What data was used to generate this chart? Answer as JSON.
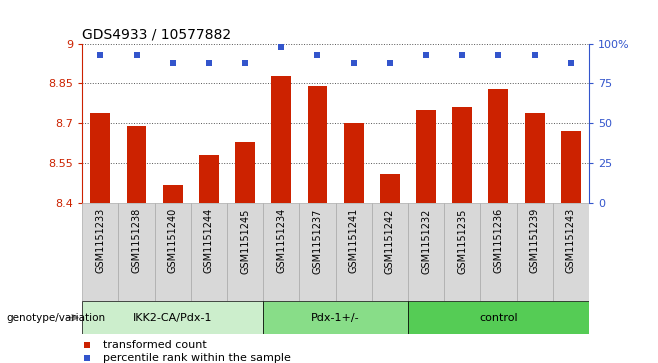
{
  "title": "GDS4933 / 10577882",
  "samples": [
    "GSM1151233",
    "GSM1151238",
    "GSM1151240",
    "GSM1151244",
    "GSM1151245",
    "GSM1151234",
    "GSM1151237",
    "GSM1151241",
    "GSM1151242",
    "GSM1151232",
    "GSM1151235",
    "GSM1151236",
    "GSM1151239",
    "GSM1151243"
  ],
  "bar_values": [
    8.74,
    8.69,
    8.47,
    8.58,
    8.63,
    8.88,
    8.84,
    8.7,
    8.51,
    8.75,
    8.76,
    8.83,
    8.74,
    8.67
  ],
  "percentile_values": [
    93,
    93,
    88,
    88,
    88,
    98,
    93,
    88,
    88,
    93,
    93,
    93,
    93,
    88
  ],
  "bar_color": "#cc2200",
  "percentile_color": "#3355cc",
  "ymin": 8.4,
  "ymax": 9.0,
  "yticks": [
    8.4,
    8.55,
    8.7,
    8.85,
    9.0
  ],
  "ytick_labels": [
    "8.4",
    "8.55",
    "8.7",
    "8.85",
    "9"
  ],
  "right_yticks": [
    0,
    25,
    50,
    75,
    100
  ],
  "right_ytick_labels": [
    "0",
    "25",
    "50",
    "75",
    "100%"
  ],
  "groups": [
    {
      "label": "IKK2-CA/Pdx-1",
      "start": 0,
      "end": 5,
      "color": "#cceecc"
    },
    {
      "label": "Pdx-1+/-",
      "start": 5,
      "end": 9,
      "color": "#88dd88"
    },
    {
      "label": "control",
      "start": 9,
      "end": 14,
      "color": "#55cc55"
    }
  ],
  "xlabel_genotype": "genotype/variation",
  "legend_bar": "transformed count",
  "legend_pct": "percentile rank within the sample",
  "tick_color_left": "#cc2200",
  "tick_color_right": "#3355cc",
  "grid_color": "#555555",
  "bar_width": 0.55,
  "tick_label_bg": "#d8d8d8",
  "tick_label_border": "#aaaaaa"
}
